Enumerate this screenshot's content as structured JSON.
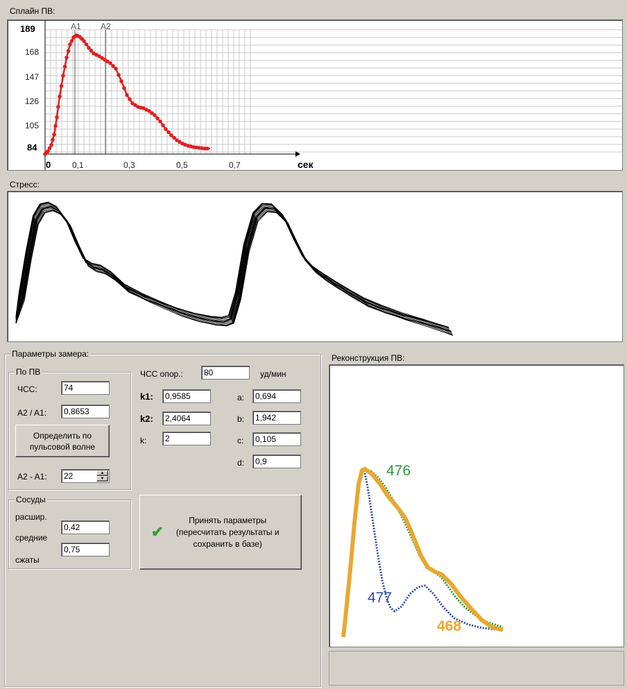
{
  "spline": {
    "title": "Сплайн ПВ:",
    "y_ticks": [
      "189",
      "168",
      "147",
      "126",
      "105",
      "84"
    ],
    "x_ticks": [
      "0",
      "0,1",
      "0,3",
      "0,5",
      "0,7"
    ],
    "x_unit": "сек",
    "markers": [
      "A1",
      "A2"
    ],
    "curve_color": "#e02020"
  },
  "stress": {
    "title": "Стресс:"
  },
  "params": {
    "title": "Параметры замера:",
    "po_pv": {
      "title": "По ПВ",
      "hr_label": "ЧСС:",
      "hr_value": "74",
      "ratio_label": "A2 / A1:",
      "ratio_value": "0,8653",
      "detect_button": "Определить по пульсовой волне",
      "diff_label": "A2 - A1:",
      "diff_value": "22"
    },
    "vessels": {
      "title": "Сосуды",
      "dilated_label": "расшир.",
      "medium_label": "средние",
      "medium_value": "0,42",
      "constricted_label": "сжаты",
      "constricted_value": "0,75"
    },
    "hr_ref_label": "ЧСС опор.:",
    "hr_ref_value": "80",
    "hr_ref_unit": "уд/мин",
    "k1_label": "k1:",
    "k1_value": "0,9585",
    "k2_label": "k2:",
    "k2_value": "2,4064",
    "k_label": "k:",
    "k_value": "2",
    "a_label": "a:",
    "a_value": "0,694",
    "b_label": "b:",
    "b_value": "1,942",
    "c_label": "c:",
    "c_value": "0,105",
    "d_label": "d:",
    "d_value": "0,9",
    "accept_button": "Принять параметры (пересчитать результаты и сохранить в базе)"
  },
  "reconstruction": {
    "title": "Реконструкция ПВ:",
    "series": [
      {
        "name": "476",
        "color": "#2a9a3a"
      },
      {
        "name": "477",
        "color": "#2a4aa8"
      },
      {
        "name": "468",
        "color": "#e8a830"
      }
    ]
  }
}
